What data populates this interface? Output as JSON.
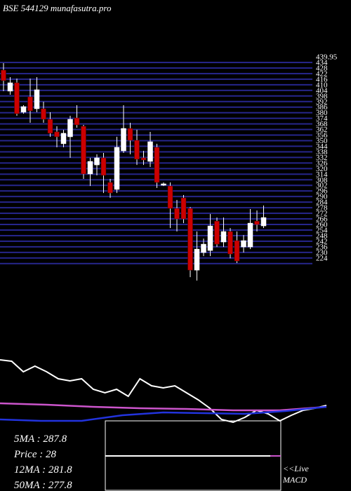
{
  "chart_data": [
    {
      "type": "candlestick",
      "title": "BSE 544129 munafasutra.pro",
      "open": [
        431,
        408.4,
        417.4,
        385.8,
        402.3,
        389.5,
        389.5,
        378.2,
        364.7,
        351.9,
        359.4,
        379.7,
        370.7,
        319.5,
        329.2,
        336.8,
        310.4,
        302.9,
        344.3,
        368.4,
        355.6,
        336.8,
        333,
        348.1,
        307.4,
        306.6,
        282.5,
        293.8,
        282.5,
        216.2,
        235.1,
        237.3,
        268.8,
        246.4,
        257.7,
        247.9,
        241.1,
        241.1,
        268.8,
        263.7
      ],
      "high": [
        438.5,
        423.4,
        421.9,
        393.3,
        421.9,
        423.4,
        397.1,
        385.8,
        370.7,
        366.9,
        382,
        393.3,
        372.2,
        336.8,
        340.6,
        342.1,
        314.2,
        359.4,
        393.3,
        374.5,
        366.9,
        344.3,
        364.7,
        351.9,
        310.4,
        310.4,
        291.6,
        296.9,
        284,
        257.7,
        250.1,
        276.5,
        272.7,
        272.7,
        261.4,
        257.7,
        253.9,
        281.8,
        280.3,
        285.6
      ],
      "low": [
        408.4,
        404.6,
        382,
        384.2,
        374.5,
        385.8,
        374.5,
        359.4,
        348.1,
        348.1,
        336.8,
        369.2,
        314.2,
        306.6,
        318,
        299.1,
        293.8,
        299.1,
        342.1,
        340.6,
        329.2,
        329.2,
        327,
        304.4,
        306.6,
        261.4,
        257.7,
        266.7,
        208.7,
        205,
        231.3,
        231.3,
        241.1,
        241.1,
        228.9,
        223.8,
        235.1,
        238.8,
        257.7,
        261.4
      ],
      "close": [
        419.7,
        417.4,
        384.2,
        391.8,
        387.3,
        409.9,
        378.2,
        363.2,
        359.4,
        363.2,
        378.2,
        372.2,
        319.5,
        333,
        336.8,
        318,
        299.1,
        348.1,
        368.4,
        355.6,
        335.3,
        334.5,
        354.1,
        310.4,
        308.9,
        282.5,
        271.2,
        271.2,
        216.2,
        238.8,
        244.1,
        263.7,
        244.1,
        257.7,
        233.5,
        226,
        247.9,
        266.7,
        265.2,
        272.7
      ],
      "up_color": "#ffffff",
      "down_color": "#cc0000",
      "grid_color": "#26268c",
      "ylim": [
        205,
        440
      ],
      "yticks": [
        439.95,
        434,
        428,
        422,
        416,
        410,
        404,
        398,
        392,
        386,
        380,
        374,
        368,
        362,
        356,
        350,
        344,
        338,
        332,
        326,
        320,
        314,
        308,
        302,
        296,
        290,
        284,
        278,
        272,
        266,
        260,
        254,
        248,
        242,
        236,
        230,
        224
      ]
    },
    {
      "type": "line",
      "ylim": [
        0,
        110
      ],
      "series": [
        {
          "color": "#ffffff",
          "values": [
            97,
            95,
            80,
            88,
            80,
            70,
            67,
            70,
            55,
            50,
            55,
            45,
            70,
            60,
            57,
            60,
            50,
            40,
            28,
            12,
            8,
            15,
            25,
            20,
            10,
            18,
            25,
            28,
            32
          ]
        },
        {
          "color": "#cc55cc",
          "values": [
            35,
            33,
            30,
            28,
            27,
            25,
            25,
            30
          ]
        },
        {
          "color": "#2233dd",
          "values": [
            12,
            10,
            10,
            18,
            22,
            21,
            20,
            24,
            30
          ]
        }
      ]
    },
    {
      "type": "stats",
      "lines": [
        "5MA : 287.8",
        "Price : 28",
        "12MA : 281.8",
        "50MA : 277.8"
      ],
      "live": [
        "<<Live",
        "MACD"
      ]
    }
  ]
}
